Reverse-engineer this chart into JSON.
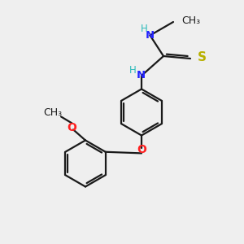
{
  "background_color": "#efefef",
  "bond_color": "#1a1a1a",
  "N_color": "#2222ff",
  "O_color": "#ff2020",
  "S_color": "#b8b000",
  "H_color": "#2bbaba",
  "C_color": "#1a1a1a",
  "line_width": 1.6,
  "font_size": 9.5,
  "figsize": [
    3.0,
    3.0
  ],
  "dpi": 100,
  "xlim": [
    0,
    10
  ],
  "ylim": [
    0,
    10
  ]
}
